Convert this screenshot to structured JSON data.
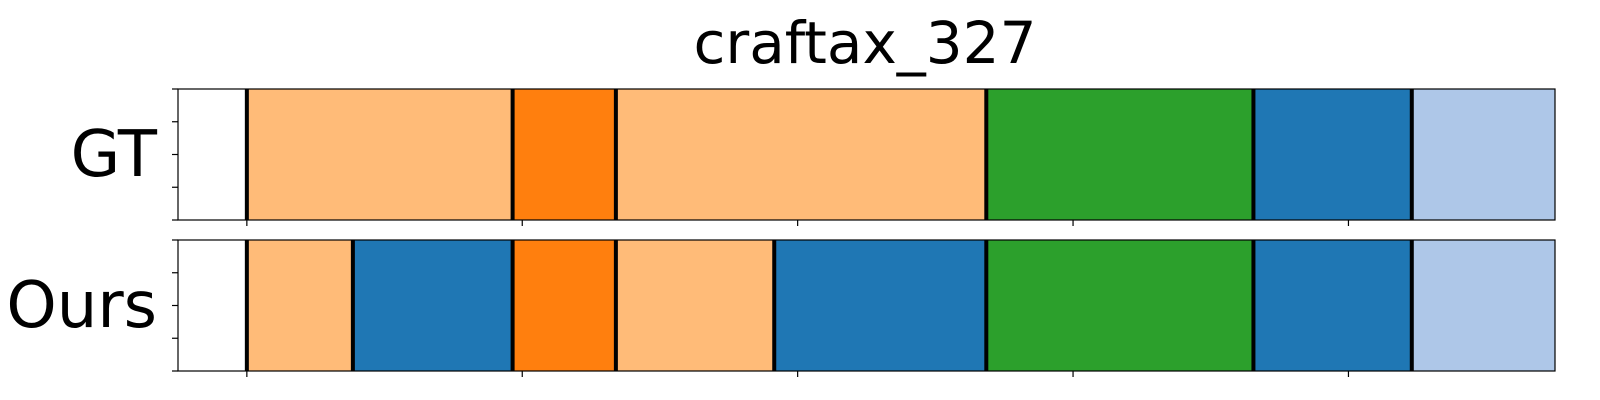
{
  "chart_data": {
    "type": "segmentation",
    "title": "craftax_327",
    "colors": {
      "light-orange": "#ffbb78",
      "orange": "#ff7f0e",
      "green": "#2ca02c",
      "blue": "#1f77b4",
      "light-blue": "#aec7e8",
      "boundary": "#000000"
    },
    "x_range": [
      0,
      1
    ],
    "y_ticks_per_track": 5,
    "rows": [
      {
        "label": "GT",
        "segments": [
          {
            "start": 0.05,
            "end": 0.243,
            "color": "light-orange"
          },
          {
            "start": 0.243,
            "end": 0.318,
            "color": "orange"
          },
          {
            "start": 0.318,
            "end": 0.587,
            "color": "light-orange"
          },
          {
            "start": 0.587,
            "end": 0.781,
            "color": "green"
          },
          {
            "start": 0.781,
            "end": 0.896,
            "color": "blue"
          },
          {
            "start": 0.896,
            "end": 1.048,
            "color": "light-blue"
          }
        ]
      },
      {
        "label": "Ours",
        "segments": [
          {
            "start": 0.05,
            "end": 0.127,
            "color": "light-orange"
          },
          {
            "start": 0.127,
            "end": 0.243,
            "color": "blue"
          },
          {
            "start": 0.243,
            "end": 0.318,
            "color": "orange"
          },
          {
            "start": 0.318,
            "end": 0.433,
            "color": "light-orange"
          },
          {
            "start": 0.433,
            "end": 0.587,
            "color": "blue"
          },
          {
            "start": 0.587,
            "end": 0.781,
            "color": "green"
          },
          {
            "start": 0.781,
            "end": 0.896,
            "color": "blue"
          },
          {
            "start": 0.896,
            "end": 1.048,
            "color": "light-blue"
          }
        ]
      }
    ],
    "x_ticks": [
      0.05,
      0.25,
      0.45,
      0.65,
      0.85,
      1.05
    ],
    "grid": false,
    "legend": "none"
  }
}
